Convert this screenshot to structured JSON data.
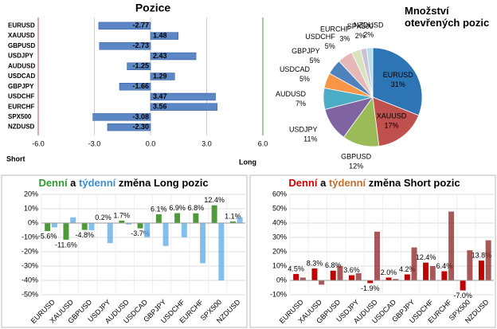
{
  "chart_data": [
    {
      "type": "hbar",
      "title": "Pozice",
      "categories": [
        "EURUSD",
        "XAUUSD",
        "GBPUSD",
        "USDJPY",
        "AUDUSD",
        "USDCAD",
        "GBPJPY",
        "USDCHF",
        "EURCHF",
        "SPX500",
        "NZDUSD"
      ],
      "values": [
        -2.77,
        1.48,
        -2.73,
        2.43,
        -1.25,
        1.29,
        -1.66,
        3.47,
        3.56,
        -3.08,
        -2.3
      ],
      "value_labels": [
        "-2.77",
        "1.48",
        "-2.73",
        "2.43",
        "-1.25",
        "1.29",
        "-1.66",
        "3.47",
        "3.56",
        "-3.08",
        "-2.30"
      ],
      "color": "#5b87c5",
      "xlim": [
        -6,
        6
      ],
      "xticks": [
        {
          "value": -6,
          "label": "-6.0"
        },
        {
          "value": -3,
          "label": "-3.0"
        },
        {
          "value": 0,
          "label": "0.0"
        },
        {
          "value": 3,
          "label": "3.0"
        },
        {
          "value": 6,
          "label": "6.0"
        }
      ],
      "annotations": [
        "Short",
        "Long"
      ]
    },
    {
      "type": "pie",
      "title": "Množství otevřených pozic",
      "categories": [
        "EURUSD",
        "XAUUSD",
        "GBPUSD",
        "USDJPY",
        "AUDUSD",
        "USDCAD",
        "GBPJPY",
        "USDCHF",
        "EURCHF",
        "SPX500",
        "NZDUSD"
      ],
      "values": [
        31,
        17,
        12,
        11,
        7,
        5,
        5,
        5,
        3,
        2,
        2
      ],
      "value_labels": [
        "31%",
        "17%",
        "12%",
        "11%",
        "7%",
        "5%",
        "5%",
        "5%",
        "3%",
        "2%",
        "2%"
      ],
      "colors": [
        "#2e75b6",
        "#c0504d",
        "#9bbb59",
        "#8064a2",
        "#4bacc6",
        "#f79646",
        "#4f81bd",
        "#e5b9b7",
        "#d7e4bd",
        "#ccc1da",
        "#b7dee8"
      ]
    },
    {
      "type": "bar",
      "title_parts": [
        "Denní",
        " a ",
        "týdenní",
        " změna Long pozic"
      ],
      "categories": [
        "EURUSD",
        "XAUUSD",
        "GBPUSD",
        "USDJPY",
        "AUDUSD",
        "USDCAD",
        "GBPJPY",
        "USDCHF",
        "EURCHF",
        "SPX500",
        "NZDUSD"
      ],
      "series": [
        {
          "color": "#4e9a3a",
          "values": [
            -5.6,
            -11.6,
            -4.8,
            0.2,
            1.7,
            -3.7,
            6.1,
            6.9,
            6.8,
            12.4,
            1.1
          ],
          "value_labels": [
            "-5.6%",
            "-11.6%",
            "-4.8%",
            "0.2%",
            "1.7%",
            "-3.7%",
            "6.1%",
            "6.9%",
            "6.8%",
            "12.4%",
            "1.1%"
          ]
        },
        {
          "color": "#5aa9e6",
          "values": [
            -3,
            4,
            -5,
            -14,
            -1,
            -10,
            -16,
            -10,
            -28,
            -40,
            4
          ]
        }
      ],
      "ylim": [
        -50,
        20
      ],
      "yticks": [
        {
          "value": 20,
          "label": "20%"
        },
        {
          "value": 10,
          "label": "10%"
        },
        {
          "value": 0,
          "label": "0%"
        },
        {
          "value": -10,
          "label": "-10%"
        },
        {
          "value": -20,
          "label": "-20%"
        },
        {
          "value": -30,
          "label": "-30%"
        },
        {
          "value": -40,
          "label": "-40%"
        },
        {
          "value": -50,
          "label": "-50%"
        }
      ]
    },
    {
      "type": "bar",
      "title_parts": [
        "Denní",
        " a ",
        "týdenní",
        " změna Short pozic"
      ],
      "categories": [
        "EURUSD",
        "XAUUSD",
        "GBPUSD",
        "USDJPY",
        "AUDUSD",
        "USDCAD",
        "GBPJPY",
        "USDCHF",
        "EURCHF",
        "SPX500",
        "NZDUSD"
      ],
      "series": [
        {
          "color": "#c00000",
          "values": [
            4.5,
            8.3,
            6.8,
            3.6,
            -1.9,
            2.0,
            4.2,
            12.4,
            6.4,
            -7.0,
            13.8
          ],
          "value_labels": [
            "4.5%",
            "8.3%",
            "6.8%",
            "3.6%",
            "-1.9%",
            "2.0%",
            "4.2%",
            "12.4%",
            "6.4%",
            "-7.0%",
            "13.8%"
          ]
        },
        {
          "color": "#8b2020",
          "values": [
            2,
            -3,
            10,
            5,
            34,
            1,
            23,
            10,
            48,
            21,
            28
          ]
        }
      ],
      "ylim": [
        -10,
        60
      ],
      "yticks": [
        {
          "value": 60,
          "label": "60%"
        },
        {
          "value": 50,
          "label": "50%"
        },
        {
          "value": 40,
          "label": "40%"
        },
        {
          "value": 30,
          "label": "30%"
        },
        {
          "value": 20,
          "label": "20%"
        },
        {
          "value": 10,
          "label": "10%"
        },
        {
          "value": 0,
          "label": "0%"
        },
        {
          "value": -10,
          "label": "-10%"
        }
      ]
    }
  ]
}
